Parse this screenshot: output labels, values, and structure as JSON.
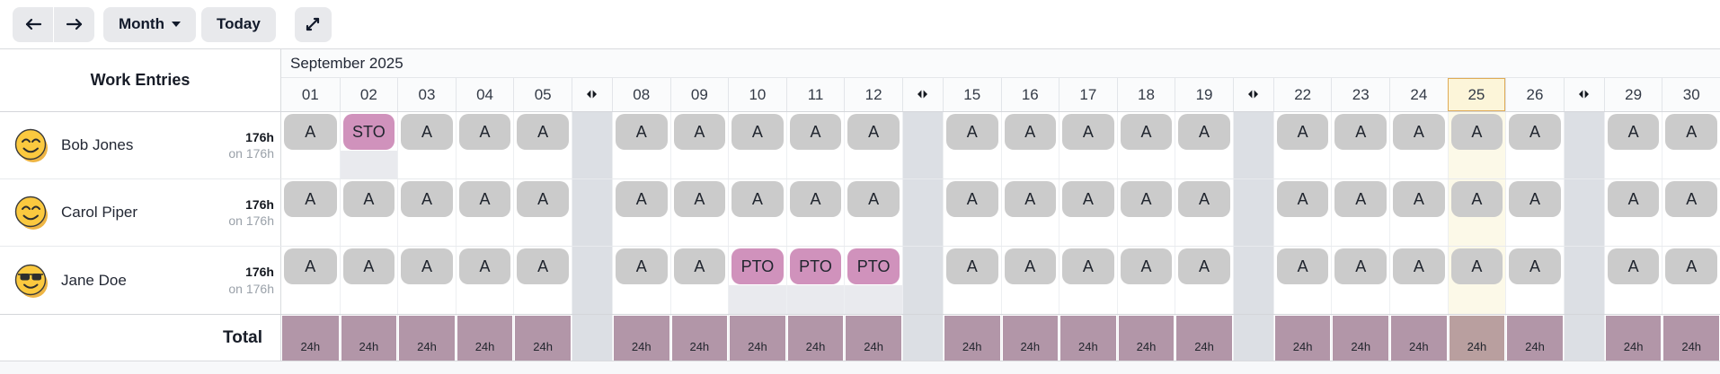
{
  "toolbar": {
    "range_selector": "Month",
    "today_label": "Today",
    "icons": {
      "prev": "arrow-left-icon",
      "next": "arrow-right-icon",
      "range_caret": "chevron-down-icon",
      "expand": "expand-icon"
    }
  },
  "panel": {
    "title": "Work Entries",
    "total_label": "Total"
  },
  "calendar": {
    "month_label": "September 2025",
    "today": "25",
    "weekend_icon": "collapse-weekend-icon",
    "columns": [
      {
        "type": "day",
        "label": "01"
      },
      {
        "type": "day",
        "label": "02"
      },
      {
        "type": "day",
        "label": "03"
      },
      {
        "type": "day",
        "label": "04"
      },
      {
        "type": "day",
        "label": "05"
      },
      {
        "type": "weekend",
        "label": ""
      },
      {
        "type": "day",
        "label": "08"
      },
      {
        "type": "day",
        "label": "09"
      },
      {
        "type": "day",
        "label": "10"
      },
      {
        "type": "day",
        "label": "11"
      },
      {
        "type": "day",
        "label": "12"
      },
      {
        "type": "weekend",
        "label": ""
      },
      {
        "type": "day",
        "label": "15"
      },
      {
        "type": "day",
        "label": "16"
      },
      {
        "type": "day",
        "label": "17"
      },
      {
        "type": "day",
        "label": "18"
      },
      {
        "type": "day",
        "label": "19"
      },
      {
        "type": "weekend",
        "label": ""
      },
      {
        "type": "day",
        "label": "22"
      },
      {
        "type": "day",
        "label": "23"
      },
      {
        "type": "day",
        "label": "24"
      },
      {
        "type": "day",
        "label": "25"
      },
      {
        "type": "day",
        "label": "26"
      },
      {
        "type": "weekend",
        "label": ""
      },
      {
        "type": "day",
        "label": "29"
      },
      {
        "type": "day",
        "label": "30"
      }
    ],
    "code_styles": {
      "A": "attendance",
      "STO": "leave",
      "PTO": "leave"
    },
    "employees": [
      {
        "name": "Bob Jones",
        "avatar": "smiley-icon",
        "hours": "176h",
        "hours_sub": "on 176h",
        "entries": {
          "01": "A",
          "02": "STO",
          "03": "A",
          "04": "A",
          "05": "A",
          "08": "A",
          "09": "A",
          "10": "A",
          "11": "A",
          "12": "A",
          "15": "A",
          "16": "A",
          "17": "A",
          "18": "A",
          "19": "A",
          "22": "A",
          "23": "A",
          "24": "A",
          "25": "A",
          "26": "A",
          "29": "A",
          "30": "A"
        }
      },
      {
        "name": "Carol Piper",
        "avatar": "smiley-icon",
        "hours": "176h",
        "hours_sub": "on 176h",
        "entries": {
          "01": "A",
          "02": "A",
          "03": "A",
          "04": "A",
          "05": "A",
          "08": "A",
          "09": "A",
          "10": "A",
          "11": "A",
          "12": "A",
          "15": "A",
          "16": "A",
          "17": "A",
          "18": "A",
          "19": "A",
          "22": "A",
          "23": "A",
          "24": "A",
          "25": "A",
          "26": "A",
          "29": "A",
          "30": "A"
        }
      },
      {
        "name": "Jane Doe",
        "avatar": "smiley-sunglasses-icon",
        "hours": "176h",
        "hours_sub": "on 176h",
        "entries": {
          "01": "A",
          "02": "A",
          "03": "A",
          "04": "A",
          "05": "A",
          "08": "A",
          "09": "A",
          "10": "PTO",
          "11": "PTO",
          "12": "PTO",
          "15": "A",
          "16": "A",
          "17": "A",
          "18": "A",
          "19": "A",
          "22": "A",
          "23": "A",
          "24": "A",
          "25": "A",
          "26": "A",
          "29": "A",
          "30": "A"
        }
      }
    ],
    "totals": {
      "01": "24h",
      "02": "24h",
      "03": "24h",
      "04": "24h",
      "05": "24h",
      "08": "24h",
      "09": "24h",
      "10": "24h",
      "11": "24h",
      "12": "24h",
      "15": "24h",
      "16": "24h",
      "17": "24h",
      "18": "24h",
      "19": "24h",
      "22": "24h",
      "23": "24h",
      "24": "24h",
      "25": "24h",
      "26": "24h",
      "29": "24h",
      "30": "24h"
    }
  },
  "colors": {
    "button_bg": "#e8e9ec",
    "text_dark": "#121a2b",
    "attendance_badge": "#cbcbcb",
    "leave_badge": "#d092bc",
    "leave_cell_tint": "#e9eaee",
    "weekend_column": "#dcdfe4",
    "today_header_bg": "#fcf5d9",
    "today_header_border": "#dfab56",
    "today_column_tint": "#fcf9e8",
    "total_bar": "#b296a8",
    "total_bar_today": "#b99f9f"
  }
}
